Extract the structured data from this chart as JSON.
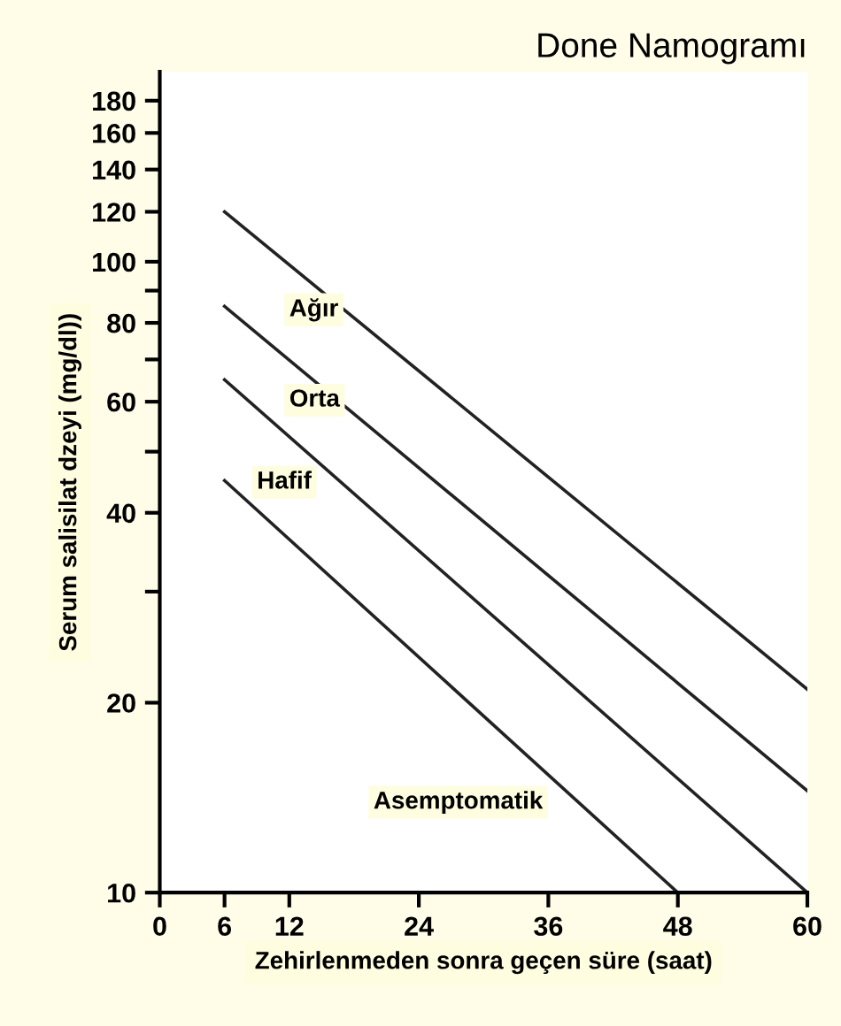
{
  "chart_data": {
    "type": "line",
    "title": "Done Namogramı",
    "xlabel": "Zehirlenmeden sonra geçen süre (saat)",
    "ylabel": "Serum salisilat dzeyi (mg/dl))",
    "series": [
      {
        "color": "#222222",
        "x": [
          6,
          60
        ],
        "values": [
          120,
          21
        ]
      },
      {
        "color": "#222222",
        "x": [
          6,
          60
        ],
        "values": [
          85,
          14.5
        ]
      },
      {
        "color": "#222222",
        "x": [
          6,
          60
        ],
        "values": [
          65,
          10
        ]
      },
      {
        "color": "#222222",
        "x": [
          6,
          48
        ],
        "values": [
          45,
          10
        ]
      }
    ],
    "xlim": [
      0,
      60
    ],
    "xticks": [
      0,
      6,
      12,
      24,
      36,
      48,
      60
    ],
    "ylim": [
      10,
      200
    ],
    "log": "y",
    "yticks": [
      10,
      20,
      {
        "value": 30,
        "label": null
      },
      40,
      {
        "value": 50,
        "label": null
      },
      60,
      {
        "value": 70,
        "label": null
      },
      80,
      {
        "value": 90,
        "label": null
      },
      100,
      120,
      140,
      160,
      180
    ],
    "annotations": [
      "Ağır",
      "Orta",
      "Hafif",
      "Asemptomatik"
    ],
    "grid": false,
    "legend": false,
    "marker": "none",
    "line_style": "solid"
  }
}
